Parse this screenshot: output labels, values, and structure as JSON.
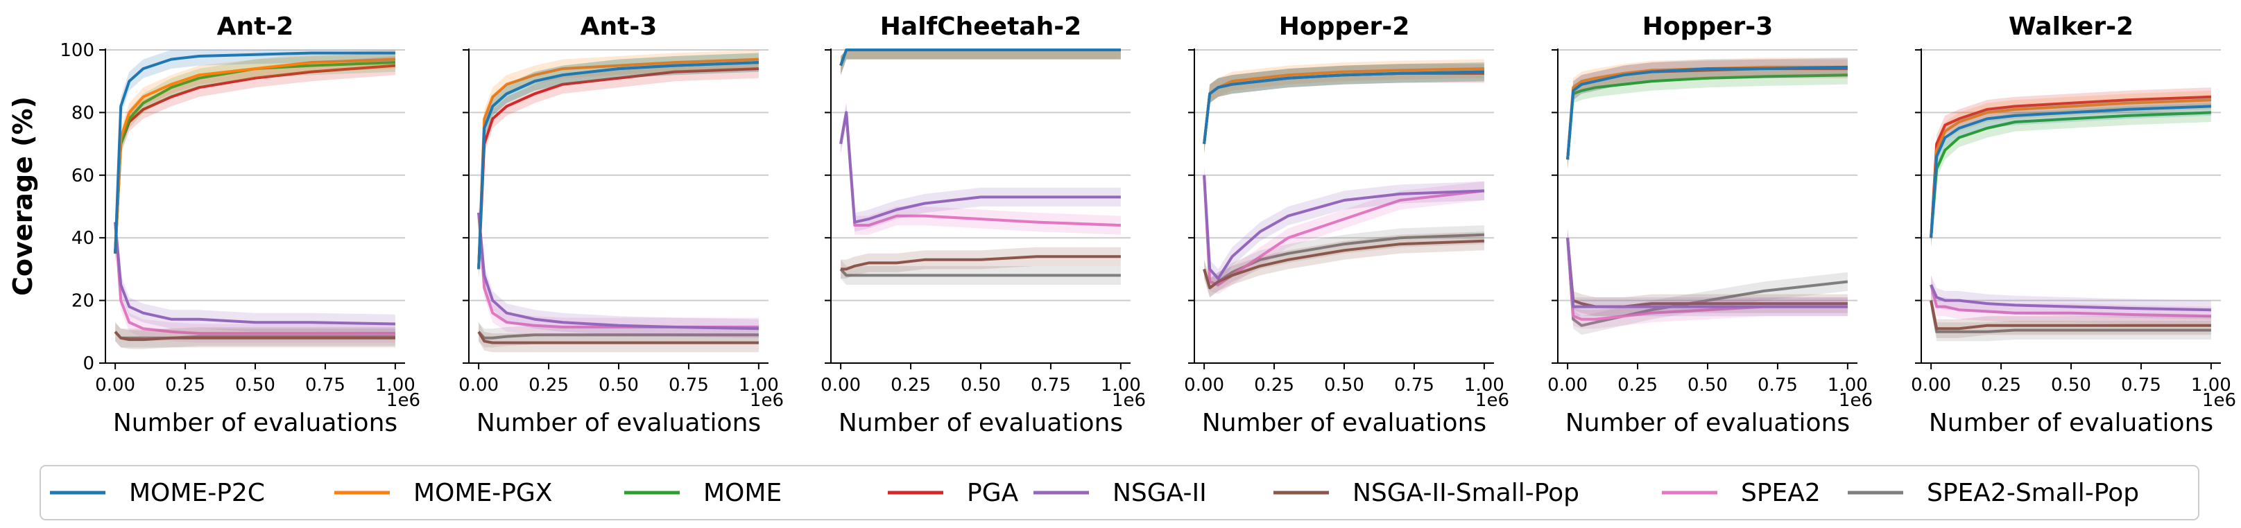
{
  "figure": {
    "ylabel": "Coverage (%)",
    "xlabel": "Number of evaluations",
    "x_offset_label": "1e6",
    "y_ticks": [
      "0",
      "20",
      "40",
      "60",
      "80",
      "100"
    ],
    "x_ticks": [
      "0.00",
      "0.25",
      "0.50",
      "0.75",
      "1.00"
    ]
  },
  "legend": [
    {
      "name": "MOME-P2C",
      "color": "#1f77b4"
    },
    {
      "name": "MOME-PGX",
      "color": "#ff7f0e"
    },
    {
      "name": "MOME",
      "color": "#2ca02c"
    },
    {
      "name": "PGA",
      "color": "#d62728"
    },
    {
      "name": "NSGA-II",
      "color": "#9467bd"
    },
    {
      "name": "NSGA-II-Small-Pop",
      "color": "#8c564b"
    },
    {
      "name": "SPEA2",
      "color": "#e377c2"
    },
    {
      "name": "SPEA2-Small-Pop",
      "color": "#7f7f7f"
    }
  ],
  "chart_data": [
    {
      "type": "line",
      "title": "Ant-2",
      "xlabel": "Number of evaluations",
      "ylabel": "Coverage (%)",
      "xlim": [
        0,
        1.0
      ],
      "ylim": [
        0,
        100
      ],
      "x_scale_note": "1e6",
      "grid": "horizontal",
      "x": [
        0,
        0.02,
        0.05,
        0.1,
        0.2,
        0.3,
        0.5,
        0.7,
        1.0
      ],
      "series": [
        {
          "name": "MOME-P2C",
          "values": [
            35,
            82,
            90,
            94,
            97,
            98,
            98.5,
            99,
            99
          ]
        },
        {
          "name": "MOME-PGX",
          "values": [
            35,
            72,
            80,
            85,
            89,
            92,
            94,
            96,
            97
          ]
        },
        {
          "name": "MOME",
          "values": [
            35,
            70,
            78,
            83,
            88,
            91,
            94,
            95,
            96
          ]
        },
        {
          "name": "PGA",
          "values": [
            35,
            70,
            77,
            81,
            85,
            88,
            91,
            93,
            95
          ]
        },
        {
          "name": "NSGA-II",
          "values": [
            45,
            25,
            18,
            16,
            14,
            14,
            13,
            13,
            12.5
          ]
        },
        {
          "name": "NSGA-II-Small-Pop",
          "values": [
            10,
            8,
            7.5,
            7.5,
            8,
            8,
            8,
            8,
            8
          ]
        },
        {
          "name": "SPEA2",
          "values": [
            45,
            20,
            13,
            11,
            10,
            9.5,
            9.5,
            9.5,
            9.5
          ]
        },
        {
          "name": "SPEA2-Small-Pop",
          "values": [
            10,
            8,
            8,
            8,
            8,
            8.5,
            8.5,
            8.5,
            8.5
          ]
        }
      ]
    },
    {
      "type": "line",
      "title": "Ant-3",
      "xlabel": "Number of evaluations",
      "ylabel": "",
      "xlim": [
        0,
        1.0
      ],
      "ylim": [
        0,
        100
      ],
      "x_scale_note": "1e6",
      "grid": "horizontal",
      "x": [
        0,
        0.02,
        0.05,
        0.1,
        0.2,
        0.3,
        0.5,
        0.7,
        1.0
      ],
      "series": [
        {
          "name": "MOME-P2C",
          "values": [
            30,
            75,
            82,
            86,
            90,
            92,
            94,
            95,
            96
          ]
        },
        {
          "name": "MOME-PGX",
          "values": [
            30,
            78,
            85,
            89,
            92,
            94,
            95,
            96,
            97
          ]
        },
        {
          "name": "MOME",
          "values": [
            30,
            75,
            82,
            86,
            90,
            92,
            94,
            95,
            96
          ]
        },
        {
          "name": "PGA",
          "values": [
            30,
            70,
            78,
            82,
            86,
            89,
            91,
            93,
            94
          ]
        },
        {
          "name": "NSGA-II",
          "values": [
            48,
            28,
            20,
            16,
            14,
            13,
            12,
            11.5,
            11
          ]
        },
        {
          "name": "NSGA-II-Small-Pop",
          "values": [
            10,
            7,
            6.5,
            6.5,
            6.5,
            6.5,
            6.5,
            6.5,
            6.5
          ]
        },
        {
          "name": "SPEA2",
          "values": [
            48,
            24,
            16,
            13,
            12,
            11.5,
            11.5,
            11.5,
            11.5
          ]
        },
        {
          "name": "SPEA2-Small-Pop",
          "values": [
            10,
            8,
            8,
            8.5,
            9,
            9,
            9,
            9,
            9
          ]
        }
      ]
    },
    {
      "type": "line",
      "title": "HalfCheetah-2",
      "xlabel": "Number of evaluations",
      "ylabel": "",
      "xlim": [
        0,
        1.0
      ],
      "ylim": [
        0,
        100
      ],
      "x_scale_note": "1e6",
      "grid": "horizontal",
      "x": [
        0,
        0.02,
        0.05,
        0.1,
        0.2,
        0.3,
        0.5,
        0.7,
        1.0
      ],
      "series": [
        {
          "name": "MOME-P2C",
          "values": [
            95,
            100,
            100,
            100,
            100,
            100,
            100,
            100,
            100
          ]
        },
        {
          "name": "MOME-PGX",
          "values": [
            95,
            100,
            100,
            100,
            100,
            100,
            100,
            100,
            100
          ]
        },
        {
          "name": "MOME",
          "values": [
            95,
            100,
            100,
            100,
            100,
            100,
            100,
            100,
            100
          ]
        },
        {
          "name": "PGA",
          "values": [
            95,
            100,
            100,
            100,
            100,
            100,
            100,
            100,
            100
          ]
        },
        {
          "name": "NSGA-II",
          "values": [
            70,
            80,
            45,
            46,
            49,
            51,
            53,
            53,
            53
          ]
        },
        {
          "name": "NSGA-II-Small-Pop",
          "values": [
            30,
            30,
            31,
            32,
            32,
            33,
            33,
            34,
            34
          ]
        },
        {
          "name": "SPEA2",
          "values": [
            70,
            80,
            44,
            44,
            47,
            47,
            46,
            45,
            44
          ]
        },
        {
          "name": "SPEA2-Small-Pop",
          "values": [
            30,
            28,
            28,
            28,
            28,
            28,
            28,
            28,
            28
          ]
        }
      ]
    },
    {
      "type": "line",
      "title": "Hopper-2",
      "xlabel": "Number of evaluations",
      "ylabel": "",
      "xlim": [
        0,
        1.0
      ],
      "ylim": [
        0,
        100
      ],
      "x_scale_note": "1e6",
      "grid": "horizontal",
      "x": [
        0,
        0.02,
        0.05,
        0.1,
        0.2,
        0.3,
        0.5,
        0.7,
        1.0
      ],
      "series": [
        {
          "name": "MOME-P2C",
          "values": [
            70,
            86,
            88,
            89,
            90,
            91,
            92,
            92.5,
            93
          ]
        },
        {
          "name": "MOME-PGX",
          "values": [
            70,
            86,
            88,
            90,
            91,
            92,
            93,
            93.5,
            94
          ]
        },
        {
          "name": "MOME",
          "values": [
            70,
            86,
            88,
            89,
            90,
            91,
            92,
            92.5,
            93
          ]
        },
        {
          "name": "PGA",
          "values": [
            70,
            86,
            88,
            89,
            90,
            91,
            92,
            92.5,
            92.5
          ]
        },
        {
          "name": "NSGA-II",
          "values": [
            60,
            30,
            27,
            34,
            42,
            47,
            52,
            54,
            55
          ]
        },
        {
          "name": "NSGA-II-Small-Pop",
          "values": [
            30,
            24,
            26,
            28,
            31,
            33,
            36,
            38,
            39
          ]
        },
        {
          "name": "SPEA2",
          "values": [
            60,
            26,
            25,
            28,
            34,
            40,
            46,
            52,
            55
          ]
        },
        {
          "name": "SPEA2-Small-Pop",
          "values": [
            30,
            24,
            26,
            29,
            33,
            35,
            38,
            40,
            41
          ]
        }
      ]
    },
    {
      "type": "line",
      "title": "Hopper-3",
      "xlabel": "Number of evaluations",
      "ylabel": "",
      "xlim": [
        0,
        1.0
      ],
      "ylim": [
        0,
        100
      ],
      "x_scale_note": "1e6",
      "grid": "horizontal",
      "x": [
        0,
        0.02,
        0.05,
        0.1,
        0.2,
        0.3,
        0.5,
        0.7,
        1.0
      ],
      "series": [
        {
          "name": "MOME-P2C",
          "values": [
            65,
            87,
            89,
            90,
            92,
            93,
            94,
            94,
            94.5
          ]
        },
        {
          "name": "MOME-PGX",
          "values": [
            65,
            88,
            90,
            91,
            92.5,
            93.5,
            94,
            94.5,
            94.5
          ]
        },
        {
          "name": "MOME",
          "values": [
            65,
            86,
            87,
            88,
            89,
            90,
            91,
            91.5,
            92
          ]
        },
        {
          "name": "PGA",
          "values": [
            65,
            87,
            89,
            90,
            92,
            93,
            93.5,
            94,
            94
          ]
        },
        {
          "name": "NSGA-II",
          "values": [
            40,
            18,
            18,
            18,
            18,
            18,
            18,
            18,
            18
          ]
        },
        {
          "name": "NSGA-II-Small-Pop",
          "values": [
            40,
            20,
            19,
            18,
            18,
            19,
            19,
            19,
            19
          ]
        },
        {
          "name": "SPEA2",
          "values": [
            40,
            15,
            14,
            14,
            15,
            16,
            17,
            18,
            18
          ]
        },
        {
          "name": "SPEA2-Small-Pop",
          "values": [
            40,
            14,
            12,
            13,
            15,
            17,
            20,
            23,
            26
          ]
        }
      ]
    },
    {
      "type": "line",
      "title": "Walker-2",
      "xlabel": "Number of evaluations",
      "ylabel": "",
      "xlim": [
        0,
        1.0
      ],
      "ylim": [
        0,
        100
      ],
      "x_scale_note": "1e6",
      "grid": "horizontal",
      "x": [
        0,
        0.02,
        0.05,
        0.1,
        0.2,
        0.3,
        0.5,
        0.7,
        1.0
      ],
      "series": [
        {
          "name": "MOME-P2C",
          "values": [
            40,
            66,
            72,
            75,
            78,
            79,
            80,
            81,
            82
          ]
        },
        {
          "name": "MOME-PGX",
          "values": [
            40,
            68,
            74,
            77,
            80,
            81,
            82,
            83,
            84
          ]
        },
        {
          "name": "MOME",
          "values": [
            40,
            62,
            68,
            72,
            75,
            77,
            78,
            79,
            80
          ]
        },
        {
          "name": "PGA",
          "values": [
            40,
            70,
            76,
            78,
            81,
            82,
            83,
            84,
            85
          ]
        },
        {
          "name": "NSGA-II",
          "values": [
            25,
            21,
            20,
            20,
            19,
            18.5,
            18,
            17.5,
            17
          ]
        },
        {
          "name": "NSGA-II-Small-Pop",
          "values": [
            20,
            11,
            11,
            11,
            12,
            12,
            12,
            12,
            12
          ]
        },
        {
          "name": "SPEA2",
          "values": [
            25,
            18,
            18,
            17,
            16.5,
            16,
            16,
            15.5,
            15
          ]
        },
        {
          "name": "SPEA2-Small-Pop",
          "values": [
            20,
            10,
            10,
            10,
            10,
            10.5,
            10.5,
            10.5,
            10.5
          ]
        }
      ]
    }
  ]
}
